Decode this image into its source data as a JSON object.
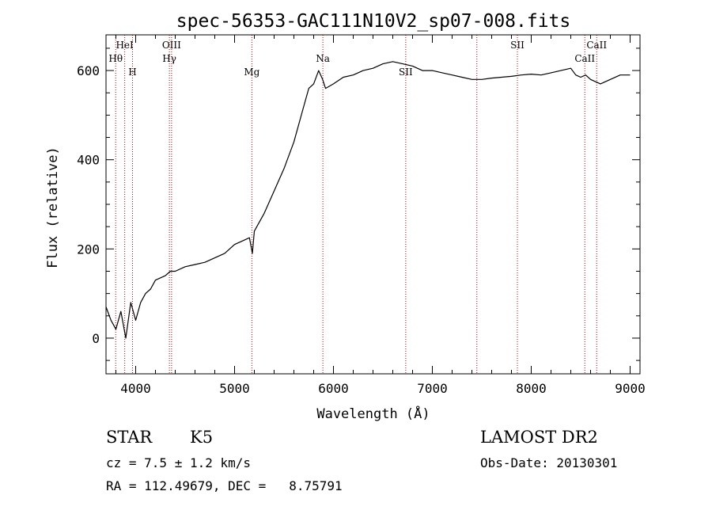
{
  "chart_data": {
    "type": "line",
    "title": "spec-56353-GAC111N10V2_sp07-008.fits",
    "xlabel": "Wavelength (Å)",
    "ylabel": "Flux (relative)",
    "xlim": [
      3700,
      9100
    ],
    "ylim": [
      -80,
      680
    ],
    "x_ticks": [
      4000,
      5000,
      6000,
      7000,
      8000,
      9000
    ],
    "y_ticks": [
      0,
      200,
      400,
      600
    ],
    "grid": false,
    "line_color": "#000000",
    "marker_color": "#c00000",
    "series": [
      {
        "x": [
          3700,
          3750,
          3800,
          3850,
          3900,
          3950,
          4000,
          4050,
          4100,
          4150,
          4200,
          4300,
          4350,
          4400,
          4500,
          4600,
          4700,
          4800,
          4900,
          5000,
          5100,
          5150,
          5180,
          5200,
          5300,
          5400,
          5500,
          5600,
          5700,
          5750,
          5800,
          5850,
          5890,
          5920,
          6000,
          6100,
          6200,
          6300,
          6400,
          6500,
          6600,
          6700,
          6800,
          6900,
          7000,
          7100,
          7200,
          7300,
          7400,
          7500,
          7600,
          7700,
          7800,
          7900,
          8000,
          8100,
          8200,
          8300,
          8400,
          8450,
          8500,
          8550,
          8600,
          8700,
          8800,
          8900,
          9000
        ],
        "y": [
          70,
          40,
          20,
          60,
          0,
          80,
          40,
          80,
          100,
          110,
          130,
          140,
          150,
          150,
          160,
          165,
          170,
          180,
          190,
          210,
          220,
          225,
          190,
          240,
          280,
          330,
          380,
          440,
          520,
          560,
          570,
          600,
          580,
          560,
          570,
          585,
          590,
          600,
          605,
          615,
          620,
          615,
          610,
          600,
          600,
          595,
          590,
          585,
          580,
          580,
          583,
          585,
          587,
          590,
          592,
          590,
          595,
          600,
          605,
          590,
          585,
          590,
          580,
          570,
          580,
          590,
          590
        ]
      }
    ],
    "line_markers": [
      {
        "label": "Hθ",
        "x": 3798,
        "row": 2
      },
      {
        "label": "HeI",
        "x": 3889,
        "row": 1
      },
      {
        "label": "H",
        "x": 3968,
        "row": 3
      },
      {
        "label": "OIII",
        "x": 4363,
        "row": 1
      },
      {
        "label": "Hγ",
        "x": 4341,
        "row": 2
      },
      {
        "label": "Mg",
        "x": 5175,
        "row": 3
      },
      {
        "label": "Na",
        "x": 5893,
        "row": 2
      },
      {
        "label": "SII",
        "x": 6731,
        "row": 3
      },
      {
        "label": "",
        "x": 7450,
        "row": 3
      },
      {
        "label": "SII",
        "x": 7860,
        "row": 1
      },
      {
        "label": "CaII",
        "x": 8542,
        "row": 2
      },
      {
        "label": "CaII",
        "x": 8662,
        "row": 1
      }
    ]
  },
  "info": {
    "class_label": "STAR",
    "subclass_label": "K5",
    "cz_text": "cz = 7.5 ± 1.2 km/s",
    "coords_text": "RA = 112.49679, DEC =   8.75791",
    "survey_text": "LAMOST DR2",
    "obs_date_text": "Obs-Date: 20130301"
  }
}
